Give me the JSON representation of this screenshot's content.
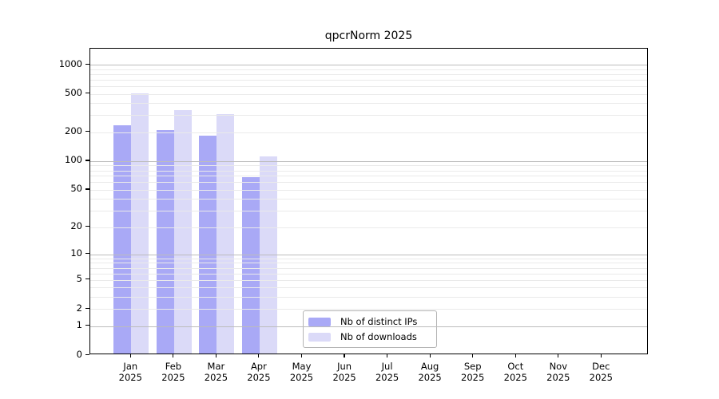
{
  "title": "qpcrNorm 2025",
  "chart_data": {
    "type": "bar",
    "title": "qpcrNorm 2025",
    "y_scale": "log10(value+1)",
    "ylim": [
      0,
      1460
    ],
    "grid": "horizontal major (1,10,100,1000) + minor (log subdivisions)",
    "legend_position": "inside lower-center",
    "year": "2025",
    "months": [
      "Jan",
      "Feb",
      "Mar",
      "Apr",
      "May",
      "Jun",
      "Jul",
      "Aug",
      "Sep",
      "Oct",
      "Nov",
      "Dec"
    ],
    "categories": [
      "Jan 2025",
      "Feb 2025",
      "Mar 2025",
      "Apr 2025",
      "May 2025",
      "Jun 2025",
      "Jul 2025",
      "Aug 2025",
      "Sep 2025",
      "Oct 2025",
      "Nov 2025",
      "Dec 2025"
    ],
    "y_ticks": [
      0,
      1,
      2,
      5,
      10,
      20,
      50,
      100,
      200,
      500,
      1000
    ],
    "series": [
      {
        "name": "Nb of distinct IPs",
        "color": "#a9a9f6",
        "values": [
          226,
          202,
          176,
          65,
          0,
          0,
          0,
          0,
          0,
          0,
          0,
          0
        ]
      },
      {
        "name": "Nb of downloads",
        "color": "#dbdaf8",
        "values": [
          489,
          325,
          296,
          108,
          0,
          0,
          0,
          0,
          0,
          0,
          0,
          0
        ]
      }
    ]
  },
  "colors": {
    "distinct_ips_bar": "#a9a9f6",
    "downloads_bar": "#dbdaf8",
    "major_gridline": "#bcbcbc",
    "minor_gridline": "#eaeaea",
    "axis": "#000000",
    "legend_border": "#b3b3b3",
    "background": "#ffffff"
  }
}
